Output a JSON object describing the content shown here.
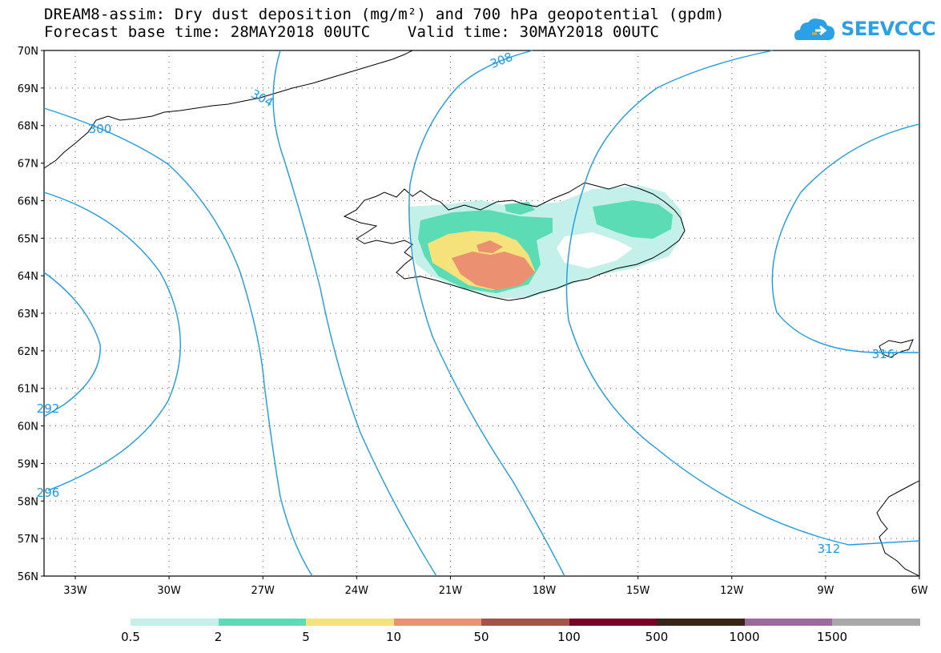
{
  "header": {
    "title_line1": "DREAM8-assim: Dry dust deposition (mg/m²) and 700 hPa geopotential (gpdm)",
    "title_line2": "Forecast base time: 28MAY2018 00UTC    Valid time: 30MAY2018 00UTC",
    "logo_text": "SEEVCCC",
    "logo_icon": "cloud-icon"
  },
  "map": {
    "lat_labels": [
      "70N",
      "69N",
      "68N",
      "67N",
      "66N",
      "65N",
      "64N",
      "63N",
      "62N",
      "61N",
      "60N",
      "59N",
      "58N",
      "57N",
      "56N"
    ],
    "lon_labels": [
      "33W",
      "30W",
      "27W",
      "24W",
      "21W",
      "18W",
      "15W",
      "12W",
      "9W",
      "6W"
    ],
    "contour_labels": [
      "300",
      "304",
      "308",
      "292",
      "296",
      "312",
      "316"
    ],
    "contour_color": "#1e9be6",
    "grid_style": "dotted"
  },
  "legend": {
    "colors": [
      "#c3f0e8",
      "#5bdcb4",
      "#f6e27a",
      "#eb9070",
      "#a8504a",
      "#7a0028",
      "#3a2418",
      "#9e6a9e",
      "#a8a8a8"
    ],
    "labels": [
      "0.5",
      "2",
      "5",
      "10",
      "50",
      "100",
      "500",
      "1000",
      "1500"
    ]
  }
}
